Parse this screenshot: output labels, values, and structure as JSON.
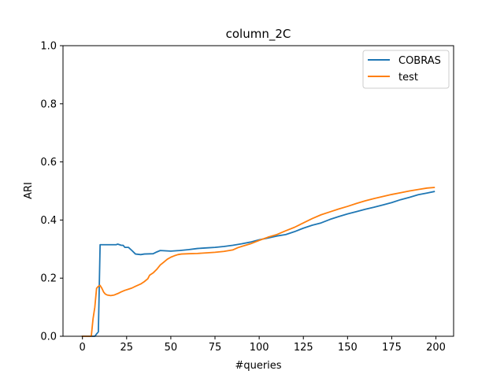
{
  "chart_data": {
    "type": "line",
    "title": "column_2C",
    "xlabel": "#queries",
    "ylabel": "ARI",
    "xlim": [
      -11,
      210
    ],
    "ylim": [
      0,
      1
    ],
    "xticks": [
      0,
      25,
      50,
      75,
      100,
      125,
      150,
      175,
      200
    ],
    "yticks": [
      0.0,
      0.2,
      0.4,
      0.6,
      0.8,
      1.0
    ],
    "xtick_labels": [
      "0",
      "25",
      "50",
      "75",
      "100",
      "125",
      "150",
      "175",
      "200"
    ],
    "ytick_labels": [
      "0.0",
      "0.2",
      "0.4",
      "0.6",
      "0.8",
      "1.0"
    ],
    "grid": false,
    "legend_position": "top-right",
    "series": [
      {
        "name": "COBRAS",
        "color": "#1f77b4",
        "points": [
          [
            0,
            0.0
          ],
          [
            7,
            0.0
          ],
          [
            8,
            0.008
          ],
          [
            9,
            0.015
          ],
          [
            10,
            0.315
          ],
          [
            15,
            0.315
          ],
          [
            19,
            0.315
          ],
          [
            20,
            0.317
          ],
          [
            22,
            0.313
          ],
          [
            23,
            0.313
          ],
          [
            24,
            0.306
          ],
          [
            26,
            0.306
          ],
          [
            28,
            0.295
          ],
          [
            30,
            0.283
          ],
          [
            33,
            0.281
          ],
          [
            35,
            0.283
          ],
          [
            40,
            0.284
          ],
          [
            42,
            0.29
          ],
          [
            44,
            0.295
          ],
          [
            50,
            0.293
          ],
          [
            55,
            0.295
          ],
          [
            60,
            0.298
          ],
          [
            65,
            0.302
          ],
          [
            70,
            0.304
          ],
          [
            75,
            0.306
          ],
          [
            80,
            0.309
          ],
          [
            85,
            0.313
          ],
          [
            90,
            0.318
          ],
          [
            95,
            0.324
          ],
          [
            100,
            0.332
          ],
          [
            105,
            0.338
          ],
          [
            110,
            0.345
          ],
          [
            115,
            0.35
          ],
          [
            120,
            0.36
          ],
          [
            125,
            0.372
          ],
          [
            130,
            0.382
          ],
          [
            135,
            0.39
          ],
          [
            140,
            0.402
          ],
          [
            145,
            0.412
          ],
          [
            150,
            0.421
          ],
          [
            155,
            0.429
          ],
          [
            160,
            0.437
          ],
          [
            165,
            0.444
          ],
          [
            170,
            0.452
          ],
          [
            175,
            0.46
          ],
          [
            180,
            0.47
          ],
          [
            185,
            0.478
          ],
          [
            190,
            0.487
          ],
          [
            195,
            0.493
          ],
          [
            199,
            0.498
          ]
        ]
      },
      {
        "name": "test",
        "color": "#ff7f0e",
        "points": [
          [
            0,
            0.0
          ],
          [
            5,
            0.0
          ],
          [
            6,
            0.06
          ],
          [
            7,
            0.1
          ],
          [
            8,
            0.165
          ],
          [
            9,
            0.172
          ],
          [
            10,
            0.175
          ],
          [
            11,
            0.165
          ],
          [
            12,
            0.152
          ],
          [
            13,
            0.145
          ],
          [
            14,
            0.142
          ],
          [
            16,
            0.14
          ],
          [
            18,
            0.142
          ],
          [
            20,
            0.147
          ],
          [
            22,
            0.153
          ],
          [
            24,
            0.158
          ],
          [
            26,
            0.162
          ],
          [
            28,
            0.166
          ],
          [
            30,
            0.172
          ],
          [
            33,
            0.18
          ],
          [
            35,
            0.188
          ],
          [
            37,
            0.198
          ],
          [
            38,
            0.21
          ],
          [
            40,
            0.218
          ],
          [
            42,
            0.23
          ],
          [
            44,
            0.245
          ],
          [
            46,
            0.255
          ],
          [
            48,
            0.265
          ],
          [
            50,
            0.272
          ],
          [
            52,
            0.277
          ],
          [
            54,
            0.281
          ],
          [
            56,
            0.283
          ],
          [
            60,
            0.284
          ],
          [
            65,
            0.285
          ],
          [
            70,
            0.287
          ],
          [
            75,
            0.289
          ],
          [
            80,
            0.292
          ],
          [
            85,
            0.297
          ],
          [
            88,
            0.305
          ],
          [
            90,
            0.309
          ],
          [
            95,
            0.318
          ],
          [
            100,
            0.33
          ],
          [
            105,
            0.341
          ],
          [
            110,
            0.35
          ],
          [
            115,
            0.363
          ],
          [
            120,
            0.375
          ],
          [
            125,
            0.39
          ],
          [
            130,
            0.405
          ],
          [
            135,
            0.418
          ],
          [
            140,
            0.428
          ],
          [
            145,
            0.438
          ],
          [
            150,
            0.447
          ],
          [
            155,
            0.457
          ],
          [
            160,
            0.466
          ],
          [
            165,
            0.474
          ],
          [
            170,
            0.481
          ],
          [
            175,
            0.488
          ],
          [
            180,
            0.494
          ],
          [
            185,
            0.5
          ],
          [
            190,
            0.505
          ],
          [
            195,
            0.51
          ],
          [
            199,
            0.512
          ]
        ]
      }
    ]
  }
}
